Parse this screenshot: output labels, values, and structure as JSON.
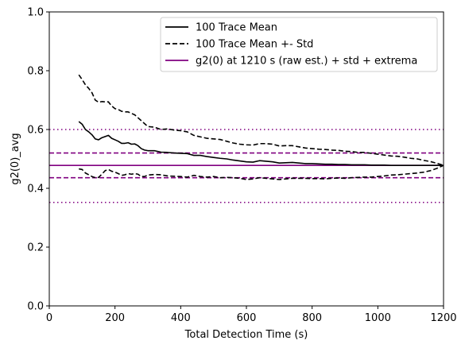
{
  "chart_data": {
    "type": "line",
    "xlabel": "Total Detection Time (s)",
    "ylabel": "g2(0)_avg",
    "xlim": [
      0,
      1200
    ],
    "ylim": [
      0.0,
      1.0
    ],
    "xticks": [
      "0",
      "200",
      "400",
      "600",
      "800",
      "1000",
      "1200"
    ],
    "yticks": [
      "0.0",
      "0.2",
      "0.4",
      "0.6",
      "0.8",
      "1.0"
    ],
    "grid": false,
    "legend_position": "top-right",
    "colors": {
      "mean": "#000000",
      "reference": "#800080"
    },
    "series": [
      {
        "name": "100 Trace Mean",
        "style": "solid",
        "x": [
          90,
          100,
          110,
          120,
          130,
          140,
          150,
          160,
          170,
          180,
          190,
          200,
          210,
          220,
          230,
          240,
          250,
          260,
          270,
          280,
          290,
          300,
          320,
          340,
          360,
          380,
          400,
          420,
          440,
          460,
          480,
          500,
          520,
          540,
          560,
          580,
          600,
          620,
          640,
          660,
          680,
          700,
          720,
          740,
          760,
          780,
          800,
          820,
          840,
          860,
          880,
          900,
          920,
          940,
          960,
          980,
          1000,
          1020,
          1040,
          1060,
          1080,
          1100,
          1120,
          1140,
          1160,
          1180,
          1200
        ],
        "values": [
          0.627,
          0.618,
          0.6,
          0.592,
          0.582,
          0.568,
          0.565,
          0.572,
          0.576,
          0.58,
          0.57,
          0.565,
          0.56,
          0.553,
          0.553,
          0.555,
          0.55,
          0.551,
          0.545,
          0.535,
          0.53,
          0.528,
          0.528,
          0.523,
          0.522,
          0.52,
          0.519,
          0.518,
          0.512,
          0.512,
          0.508,
          0.505,
          0.502,
          0.5,
          0.496,
          0.493,
          0.49,
          0.489,
          0.494,
          0.492,
          0.49,
          0.486,
          0.487,
          0.488,
          0.486,
          0.484,
          0.484,
          0.483,
          0.482,
          0.482,
          0.481,
          0.481,
          0.48,
          0.48,
          0.48,
          0.479,
          0.479,
          0.479,
          0.478,
          0.478,
          0.478,
          0.478,
          0.478,
          0.478,
          0.478,
          0.478,
          0.478
        ]
      },
      {
        "name": "100 Trace Mean +- Std",
        "style": "dashed",
        "x": [
          90,
          100,
          110,
          120,
          130,
          140,
          150,
          160,
          170,
          180,
          190,
          200,
          210,
          220,
          230,
          240,
          250,
          260,
          270,
          280,
          290,
          300,
          320,
          340,
          360,
          380,
          400,
          420,
          440,
          460,
          480,
          500,
          520,
          540,
          560,
          580,
          600,
          620,
          640,
          660,
          680,
          700,
          720,
          740,
          760,
          780,
          800,
          820,
          840,
          860,
          880,
          900,
          920,
          940,
          960,
          980,
          1000,
          1020,
          1040,
          1060,
          1080,
          1100,
          1120,
          1140,
          1160,
          1180,
          1200
        ],
        "values": [
          0.786,
          0.77,
          0.752,
          0.74,
          0.725,
          0.7,
          0.693,
          0.695,
          0.694,
          0.694,
          0.68,
          0.671,
          0.668,
          0.662,
          0.66,
          0.66,
          0.655,
          0.65,
          0.64,
          0.63,
          0.62,
          0.61,
          0.608,
          0.6,
          0.602,
          0.598,
          0.596,
          0.592,
          0.58,
          0.575,
          0.57,
          0.568,
          0.566,
          0.56,
          0.554,
          0.55,
          0.548,
          0.547,
          0.552,
          0.552,
          0.55,
          0.544,
          0.545,
          0.545,
          0.541,
          0.537,
          0.535,
          0.533,
          0.532,
          0.53,
          0.529,
          0.526,
          0.525,
          0.522,
          0.522,
          0.519,
          0.516,
          0.513,
          0.51,
          0.509,
          0.506,
          0.502,
          0.5,
          0.495,
          0.491,
          0.485,
          0.478
        ]
      },
      {
        "name": "",
        "style": "dashed",
        "x": [
          90,
          100,
          110,
          120,
          130,
          140,
          150,
          160,
          170,
          180,
          190,
          200,
          210,
          220,
          230,
          240,
          250,
          260,
          270,
          280,
          290,
          300,
          320,
          340,
          360,
          380,
          400,
          420,
          440,
          460,
          480,
          500,
          520,
          540,
          560,
          580,
          600,
          620,
          640,
          660,
          680,
          700,
          720,
          740,
          760,
          780,
          800,
          820,
          840,
          860,
          880,
          900,
          920,
          940,
          960,
          980,
          1000,
          1020,
          1040,
          1060,
          1080,
          1100,
          1120,
          1140,
          1160,
          1180,
          1200
        ],
        "values": [
          0.466,
          0.464,
          0.452,
          0.446,
          0.44,
          0.436,
          0.437,
          0.448,
          0.46,
          0.464,
          0.458,
          0.455,
          0.45,
          0.444,
          0.446,
          0.45,
          0.448,
          0.45,
          0.448,
          0.44,
          0.44,
          0.445,
          0.447,
          0.446,
          0.442,
          0.441,
          0.44,
          0.438,
          0.444,
          0.44,
          0.438,
          0.44,
          0.436,
          0.437,
          0.436,
          0.434,
          0.43,
          0.432,
          0.436,
          0.434,
          0.432,
          0.43,
          0.432,
          0.434,
          0.434,
          0.434,
          0.433,
          0.433,
          0.432,
          0.434,
          0.435,
          0.434,
          0.436,
          0.437,
          0.438,
          0.438,
          0.44,
          0.442,
          0.445,
          0.446,
          0.448,
          0.45,
          0.452,
          0.455,
          0.46,
          0.468,
          0.478
        ]
      }
    ],
    "reference_lines": {
      "legend_label": "g2(0) at 1210 s (raw est.) + std + extrema",
      "lines": [
        {
          "y": 0.478,
          "style": "solid"
        },
        {
          "y": 0.52,
          "style": "dashed"
        },
        {
          "y": 0.436,
          "style": "dashed"
        },
        {
          "y": 0.6,
          "style": "dotted"
        },
        {
          "y": 0.352,
          "style": "dotted"
        }
      ]
    }
  }
}
